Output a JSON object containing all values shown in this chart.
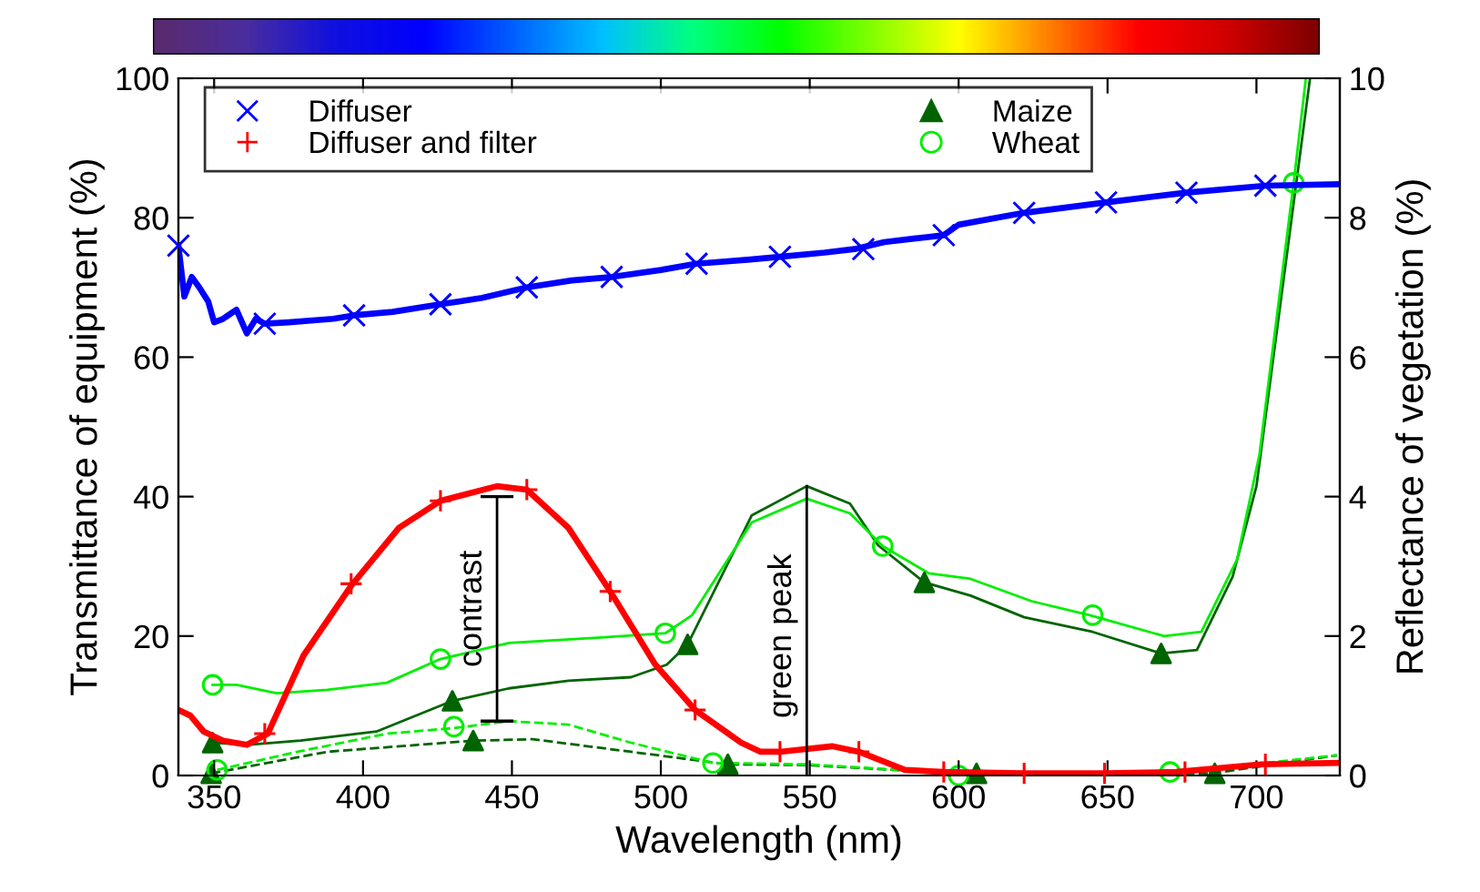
{
  "chart_data": {
    "type": "line",
    "xlabel": "Wavelength (nm)",
    "ylabel": "Transmittance of equipment (%)",
    "y2label": "Reflectance of vegetation (%)",
    "xlim": [
      338,
      728
    ],
    "xticks": [
      350,
      400,
      450,
      500,
      550,
      600,
      650,
      700
    ],
    "ylim": [
      0,
      100
    ],
    "yticks": [
      0,
      20,
      40,
      60,
      80,
      100
    ],
    "y2lim": [
      0,
      10
    ],
    "y2ticks": [
      0,
      2,
      4,
      6,
      8,
      10
    ],
    "grid": false,
    "legend": "top left",
    "series": [
      {
        "color": "#0000ff",
        "x": [
          338,
          340,
          342.5,
          345,
          348,
          350,
          353,
          357.5,
          361,
          364,
          367,
          375,
          390,
          397,
          410,
          426,
          440,
          455,
          470,
          483.5,
          500,
          512,
          530,
          540,
          555,
          565,
          575,
          585,
          595,
          600,
          622,
          649.5,
          676.5,
          703,
          728
        ],
        "values": [
          76,
          68.7,
          71.5,
          70,
          68,
          65,
          65.5,
          66.8,
          63.4,
          65.5,
          64.8,
          65,
          65.5,
          66,
          66.5,
          67.6,
          68.5,
          70,
          71,
          71.5,
          72.5,
          73.4,
          74,
          74.4,
          75,
          75.5,
          76.5,
          77,
          77.5,
          79,
          80.7,
          82.2,
          83.6,
          84.6,
          84.8
        ]
      },
      {
        "color": "#ff0000",
        "x": [
          338,
          342,
          346.5,
          353,
          361,
          368,
          380,
          396,
          412,
          426,
          445,
          455,
          469,
          483,
          498,
          511.5,
          527,
          533.5,
          540,
          557.5,
          566.5,
          582,
          595,
          622,
          649,
          673,
          701.5,
          727
        ],
        "values": [
          9.4,
          8.6,
          6.3,
          5,
          4.4,
          6,
          17.2,
          27.2,
          35.5,
          39.4,
          41.5,
          41,
          35.5,
          26.4,
          16,
          9.4,
          4.7,
          3.4,
          3.4,
          4.2,
          3.4,
          0.8,
          0.5,
          0.3,
          0.3,
          0.5,
          1.6,
          1.8
        ]
      },
      {
        "type": "line",
        "axis": "y2",
        "color": "#006400",
        "x": [
          349.5,
          361,
          379,
          404.5,
          430,
          449,
          469,
          490,
          502,
          509,
          530.5,
          549,
          563.5,
          573,
          588.5,
          604,
          622,
          645,
          668,
          680,
          692,
          700,
          718
        ],
        "values": [
          0.47,
          0.44,
          0.5,
          0.63,
          1.07,
          1.25,
          1.36,
          1.41,
          1.59,
          1.88,
          3.73,
          4.15,
          3.9,
          3.3,
          2.77,
          2.58,
          2.27,
          2.06,
          1.75,
          1.8,
          2.85,
          4.15,
          10
        ]
      },
      {
        "type": "line",
        "axis": "y2",
        "color": "#00ee00",
        "x": [
          349.5,
          357.5,
          371,
          388,
          408,
          426,
          449,
          480,
          501.5,
          510.5,
          530.5,
          549,
          563.5,
          574.5,
          590,
          604,
          624.5,
          644,
          669,
          681.5,
          693.5,
          701,
          712.5,
          716.6
        ],
        "values": [
          1.3,
          1.3,
          1.18,
          1.23,
          1.33,
          1.67,
          1.9,
          1.98,
          2.04,
          2.3,
          3.63,
          3.97,
          3.76,
          3.29,
          2.9,
          2.82,
          2.5,
          2.3,
          2.0,
          2.06,
          3.1,
          4.6,
          8.5,
          10
        ]
      },
      {
        "type": "line",
        "axis": "y2",
        "color": "#006400",
        "line_style": "dashed",
        "x": [
          349,
          388,
          437,
          457,
          490,
          522.5,
          549,
          600,
          685,
          727
        ],
        "values": [
          0.03,
          0.34,
          0.5,
          0.52,
          0.34,
          0.16,
          0.15,
          0.03,
          0.03,
          0.29
        ]
      },
      {
        "type": "line",
        "axis": "y2",
        "color": "#00ee00",
        "line_style": "dashed",
        "x": [
          351,
          378,
          408,
          430.5,
          449,
          469,
          490,
          517.5,
          549,
          573,
          600,
          671,
          685.5,
          727
        ],
        "values": [
          0.08,
          0.34,
          0.6,
          0.68,
          0.78,
          0.73,
          0.47,
          0.18,
          0.16,
          0.1,
          0,
          0.05,
          0.1,
          0.29
        ]
      },
      {
        "type": "scatter",
        "name": "Diffuser",
        "color": "#0000ff",
        "marker": "cross",
        "x": [
          338,
          367,
          397,
          426,
          455,
          483.5,
          512,
          540,
          568,
          595,
          622,
          649.5,
          676.5,
          703
        ],
        "values": [
          76,
          64.8,
          66,
          67.6,
          70,
          71.5,
          73.4,
          74.4,
          75.5,
          77.5,
          80.7,
          82.2,
          83.6,
          84.6
        ]
      },
      {
        "type": "scatter",
        "name": "Diffuser and filter",
        "color": "#ff0000",
        "marker": "plus",
        "x": [
          367,
          396,
          426,
          455,
          483,
          511.5,
          540,
          566.5,
          595,
          622,
          649,
          676,
          703
        ],
        "values": [
          6,
          27.5,
          39.4,
          41,
          26.4,
          9.4,
          3.4,
          3.4,
          0.5,
          0.3,
          0.3,
          0.5,
          1.6
        ]
      },
      {
        "type": "scatter",
        "name": "Maize",
        "axis": "y2",
        "color": "#006400",
        "marker": "triangle",
        "x": [
          349.5,
          430,
          509,
          588.5,
          668,
          349,
          437,
          522.5,
          606,
          686
        ],
        "values": [
          0.47,
          1.07,
          1.88,
          2.77,
          1.75,
          0.03,
          0.5,
          0.16,
          0.03,
          0.03
        ]
      },
      {
        "type": "scatter",
        "name": "Wheat",
        "axis": "y2",
        "color": "#00ee00",
        "marker": "circle",
        "x": [
          349.5,
          426,
          501.5,
          574.5,
          645,
          712.5,
          351,
          430.5,
          517.5,
          600,
          671
        ],
        "values": [
          1.3,
          1.67,
          2.04,
          3.29,
          2.3,
          8.5,
          0.08,
          0.7,
          0.18,
          0,
          0.05
        ]
      },
      {
        "color": "#000000",
        "x": [
          445,
          445
        ],
        "values": [
          7.8,
          40
        ]
      },
      {
        "color": "#000000",
        "x": [
          549,
          549
        ],
        "values": [
          0,
          41.5
        ]
      }
    ],
    "annotations": [
      {
        "text": "contrast",
        "x": 445,
        "y": 23.9
      },
      {
        "text": "green peak",
        "x": 549,
        "y": 20
      }
    ]
  }
}
